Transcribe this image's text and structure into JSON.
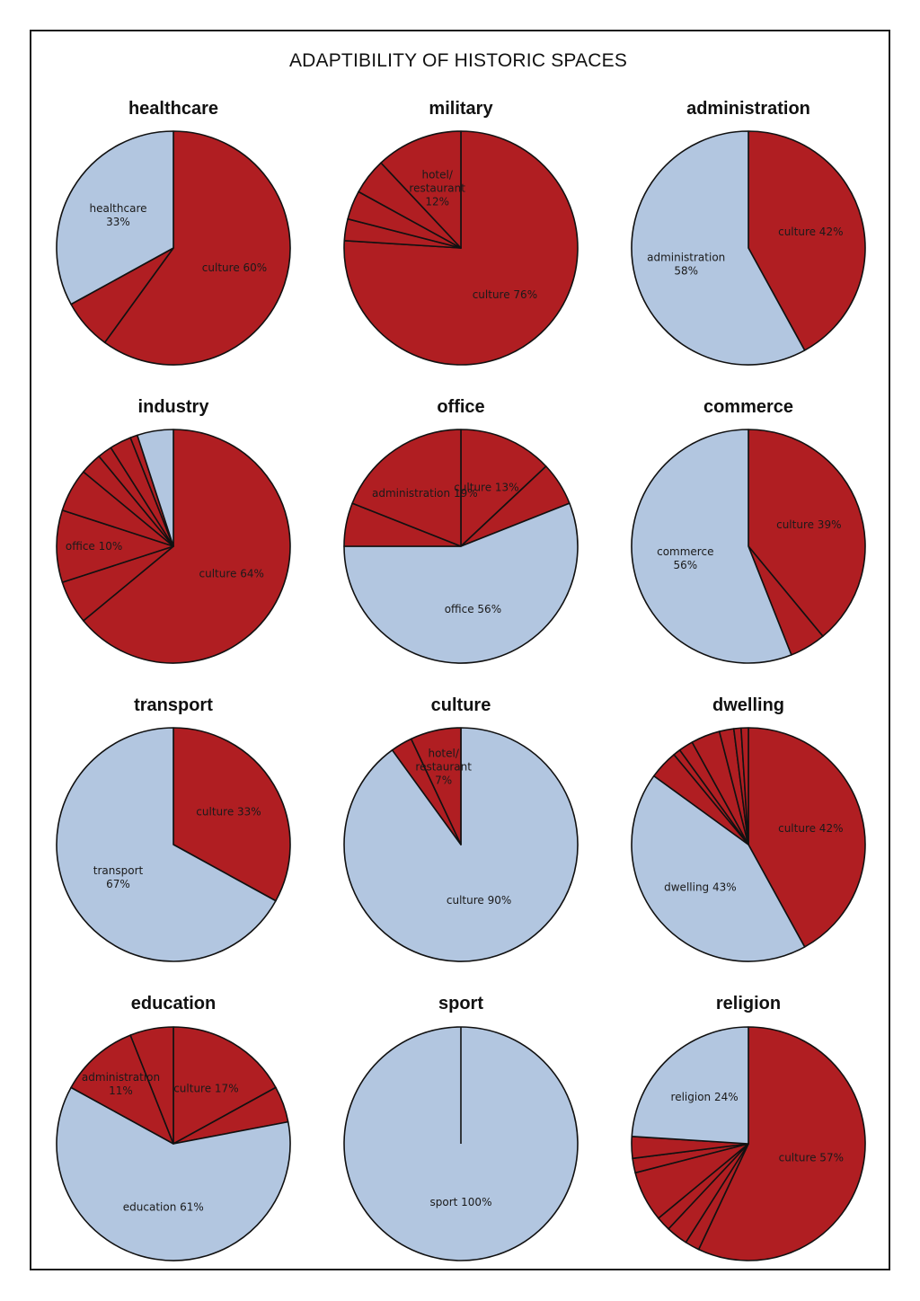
{
  "page": {
    "title": "ADAPTIBILITY OF HISTORIC SPACES"
  },
  "colors": {
    "red": "#b01e22",
    "blue": "#b2c6e0",
    "stroke": "#111111"
  },
  "chart_data": [
    {
      "type": "pie",
      "title": "healthcare",
      "slices": [
        {
          "value": 60,
          "color": "red",
          "label": [
            "culture  60%"
          ]
        },
        {
          "value": 7,
          "color": "red",
          "label": null
        },
        {
          "value": 33,
          "color": "blue",
          "label": [
            "healthcare",
            "33%"
          ]
        }
      ]
    },
    {
      "type": "pie",
      "title": "military",
      "slices": [
        {
          "value": 76,
          "color": "red",
          "label": [
            "culture  76%"
          ]
        },
        {
          "value": 3,
          "color": "red",
          "label": null
        },
        {
          "value": 4,
          "color": "red",
          "label": null
        },
        {
          "value": 5,
          "color": "red",
          "label": null
        },
        {
          "value": 12,
          "color": "red",
          "label": [
            "hotel/",
            "restaurant",
            "12%"
          ]
        }
      ]
    },
    {
      "type": "pie",
      "title": "administration",
      "slices": [
        {
          "value": 42,
          "color": "red",
          "label": [
            "culture 42%"
          ]
        },
        {
          "value": 58,
          "color": "blue",
          "label": [
            "administration",
            "58%"
          ]
        }
      ]
    },
    {
      "type": "pie",
      "title": "industry",
      "slices": [
        {
          "value": 64,
          "color": "red",
          "label": [
            "culture  64%"
          ]
        },
        {
          "value": 6,
          "color": "red",
          "label": null
        },
        {
          "value": 10,
          "color": "red",
          "label": [
            "office  10%"
          ]
        },
        {
          "value": 6,
          "color": "red",
          "label": null
        },
        {
          "value": 3,
          "color": "red",
          "label": null
        },
        {
          "value": 2,
          "color": "red",
          "label": null
        },
        {
          "value": 3,
          "color": "red",
          "label": null
        },
        {
          "value": 1,
          "color": "red",
          "label": null
        },
        {
          "value": 5,
          "color": "blue",
          "label": null
        }
      ]
    },
    {
      "type": "pie",
      "title": "office",
      "slices": [
        {
          "value": 13,
          "color": "red",
          "label": [
            "culture  13%"
          ]
        },
        {
          "value": 6,
          "color": "red",
          "label": null
        },
        {
          "value": 56,
          "color": "blue",
          "label": [
            "office  56%"
          ]
        },
        {
          "value": 6,
          "color": "red",
          "label": null
        },
        {
          "value": 19,
          "color": "red",
          "label": [
            "administration 19%"
          ]
        }
      ]
    },
    {
      "type": "pie",
      "title": "commerce",
      "slices": [
        {
          "value": 39,
          "color": "red",
          "label": [
            "culture  39%"
          ]
        },
        {
          "value": 5,
          "color": "red",
          "label": null
        },
        {
          "value": 56,
          "color": "blue",
          "label": [
            "commerce",
            "56%"
          ]
        }
      ]
    },
    {
      "type": "pie",
      "title": "transport",
      "slices": [
        {
          "value": 33,
          "color": "red",
          "label": [
            "culture 33%"
          ]
        },
        {
          "value": 67,
          "color": "blue",
          "label": [
            "transport",
            "67%"
          ]
        }
      ]
    },
    {
      "type": "pie",
      "title": "culture",
      "slices": [
        {
          "value": 90,
          "color": "blue",
          "label": [
            "culture 90%"
          ]
        },
        {
          "value": 3,
          "color": "red",
          "label": null
        },
        {
          "value": 7,
          "color": "red",
          "label": [
            "hotel/",
            "restaurant",
            "7%"
          ]
        }
      ]
    },
    {
      "type": "pie",
      "title": "dwelling",
      "slices": [
        {
          "value": 42,
          "color": "red",
          "label": [
            "culture 42%"
          ]
        },
        {
          "value": 43,
          "color": "blue",
          "label": [
            "dwelling 43%"
          ]
        },
        {
          "value": 4,
          "color": "red",
          "label": null
        },
        {
          "value": 1,
          "color": "red",
          "label": null
        },
        {
          "value": 2,
          "color": "red",
          "label": null
        },
        {
          "value": 4,
          "color": "red",
          "label": null
        },
        {
          "value": 2,
          "color": "red",
          "label": null
        },
        {
          "value": 1,
          "color": "red",
          "label": null
        },
        {
          "value": 1,
          "color": "red",
          "label": null
        }
      ]
    },
    {
      "type": "pie",
      "title": "education",
      "slices": [
        {
          "value": 17,
          "color": "red",
          "label": [
            "culture 17%"
          ]
        },
        {
          "value": 5,
          "color": "red",
          "label": null
        },
        {
          "value": 61,
          "color": "blue",
          "label": [
            "education 61%"
          ]
        },
        {
          "value": 11,
          "color": "red",
          "label": [
            "administration",
            "11%"
          ]
        },
        {
          "value": 6,
          "color": "red",
          "label": null
        }
      ]
    },
    {
      "type": "pie",
      "title": "sport",
      "slices": [
        {
          "value": 100,
          "color": "blue",
          "label": [
            "sport 100%"
          ]
        }
      ]
    },
    {
      "type": "pie",
      "title": "religion",
      "slices": [
        {
          "value": 57,
          "color": "red",
          "label": [
            "culture  57%"
          ]
        },
        {
          "value": 2,
          "color": "red",
          "label": null
        },
        {
          "value": 3,
          "color": "red",
          "label": null
        },
        {
          "value": 2,
          "color": "red",
          "label": null
        },
        {
          "value": 7,
          "color": "red",
          "label": null
        },
        {
          "value": 2,
          "color": "red",
          "label": null
        },
        {
          "value": 3,
          "color": "red",
          "label": null
        },
        {
          "value": 24,
          "color": "blue",
          "label": [
            "religion  24%"
          ]
        }
      ]
    }
  ]
}
